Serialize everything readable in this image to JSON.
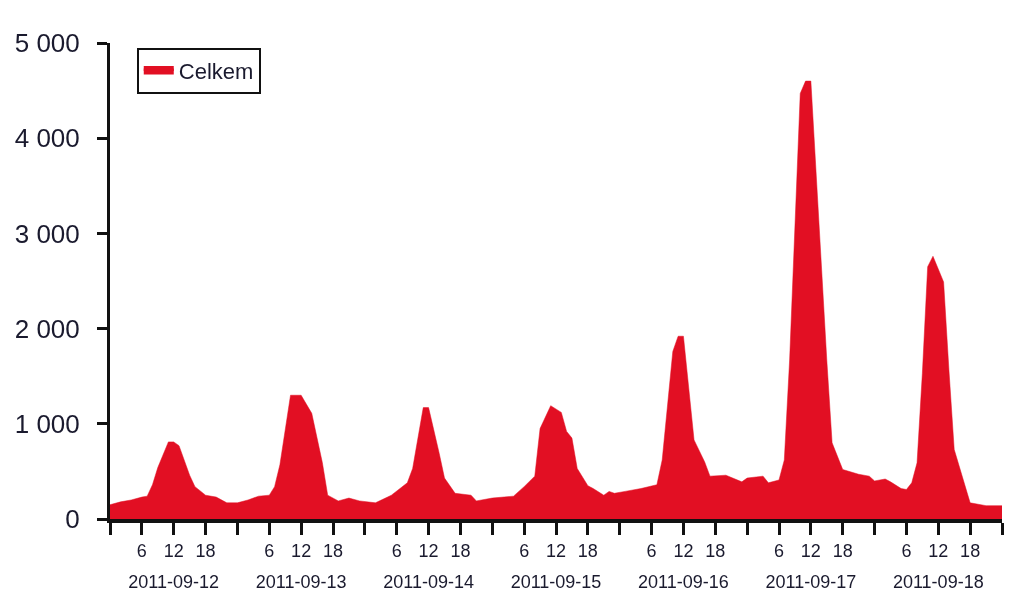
{
  "chart_data": {
    "type": "area",
    "x": [
      "2011-09-12T00:00",
      "2011-09-12T02:00",
      "2011-09-12T04:00",
      "2011-09-12T06:00",
      "2011-09-12T07:00",
      "2011-09-12T08:00",
      "2011-09-12T09:00",
      "2011-09-12T11:00",
      "2011-09-12T12:00",
      "2011-09-12T13:00",
      "2011-09-12T15:00",
      "2011-09-12T16:00",
      "2011-09-12T18:00",
      "2011-09-12T20:00",
      "2011-09-12T22:00",
      "2011-09-13T00:00",
      "2011-09-13T02:00",
      "2011-09-13T04:00",
      "2011-09-13T06:00",
      "2011-09-13T07:00",
      "2011-09-13T08:00",
      "2011-09-13T10:00",
      "2011-09-13T12:00",
      "2011-09-13T14:00",
      "2011-09-13T15:00",
      "2011-09-13T16:00",
      "2011-09-13T17:00",
      "2011-09-13T19:00",
      "2011-09-13T21:00",
      "2011-09-13T23:00",
      "2011-09-14T02:00",
      "2011-09-14T05:00",
      "2011-09-14T08:00",
      "2011-09-14T09:00",
      "2011-09-14T11:00",
      "2011-09-14T12:00",
      "2011-09-14T14:00",
      "2011-09-14T15:00",
      "2011-09-14T17:00",
      "2011-09-14T20:00",
      "2011-09-14T21:00",
      "2011-09-15T00:00",
      "2011-09-15T04:00",
      "2011-09-15T06:00",
      "2011-09-15T08:00",
      "2011-09-15T09:00",
      "2011-09-15T11:00",
      "2011-09-15T13:00",
      "2011-09-15T14:00",
      "2011-09-15T15:00",
      "2011-09-15T16:00",
      "2011-09-15T18:00",
      "2011-09-15T19:00",
      "2011-09-15T21:00",
      "2011-09-15T22:00",
      "2011-09-15T23:00",
      "2011-09-16T01:00",
      "2011-09-16T04:00",
      "2011-09-16T07:00",
      "2011-09-16T08:00",
      "2011-09-16T10:00",
      "2011-09-16T11:00",
      "2011-09-16T12:00",
      "2011-09-16T14:00",
      "2011-09-16T16:00",
      "2011-09-16T17:00",
      "2011-09-16T20:00",
      "2011-09-16T23:00",
      "2011-09-17T00:00",
      "2011-09-17T03:00",
      "2011-09-17T04:00",
      "2011-09-17T06:00",
      "2011-09-17T07:00",
      "2011-09-17T08:00",
      "2011-09-17T10:00",
      "2011-09-17T11:00",
      "2011-09-17T12:00",
      "2011-09-17T15:00",
      "2011-09-17T16:00",
      "2011-09-17T18:00",
      "2011-09-17T21:00",
      "2011-09-17T23:00",
      "2011-09-18T00:00",
      "2011-09-18T02:00",
      "2011-09-18T03:00",
      "2011-09-18T05:00",
      "2011-09-18T06:00",
      "2011-09-18T07:00",
      "2011-09-18T08:00",
      "2011-09-18T09:00",
      "2011-09-18T10:00",
      "2011-09-18T11:00",
      "2011-09-18T13:00",
      "2011-09-18T14:00",
      "2011-09-18T15:00",
      "2011-09-18T18:00",
      "2011-09-18T21:00",
      "2011-09-19T00:00"
    ],
    "series": [
      {
        "name": "Celkem",
        "color": "#e20f23",
        "values": [
          150,
          180,
          200,
          230,
          240,
          360,
          540,
          810,
          810,
          770,
          460,
          340,
          250,
          230,
          170,
          170,
          200,
          240,
          250,
          340,
          570,
          1300,
          1300,
          1110,
          850,
          590,
          250,
          190,
          220,
          190,
          170,
          250,
          380,
          530,
          1170,
          1170,
          690,
          430,
          270,
          250,
          190,
          220,
          240,
          340,
          450,
          950,
          1190,
          1120,
          920,
          850,
          530,
          350,
          320,
          250,
          290,
          270,
          290,
          320,
          360,
          620,
          1760,
          1920,
          1920,
          830,
          600,
          450,
          460,
          390,
          430,
          450,
          380,
          410,
          620,
          1670,
          4470,
          4600,
          4600,
          1670,
          800,
          520,
          470,
          450,
          400,
          420,
          390,
          320,
          310,
          380,
          590,
          1530,
          2650,
          2760,
          2490,
          1570,
          730,
          170,
          140,
          140
        ]
      }
    ],
    "xlim": [
      "2011-09-12T00:00",
      "2011-09-19T00:00"
    ],
    "xticks": [
      {
        "value": "2011-09-12T00:00",
        "label": null
      },
      {
        "value": "2011-09-12T06:00",
        "label": "6"
      },
      {
        "value": "2011-09-12T12:00",
        "label": "12"
      },
      {
        "value": "2011-09-12T18:00",
        "label": "18"
      },
      {
        "value": "2011-09-13T00:00",
        "label": null
      },
      {
        "value": "2011-09-13T06:00",
        "label": "6"
      },
      {
        "value": "2011-09-13T12:00",
        "label": "12"
      },
      {
        "value": "2011-09-13T18:00",
        "label": "18"
      },
      {
        "value": "2011-09-14T00:00",
        "label": null
      },
      {
        "value": "2011-09-14T06:00",
        "label": "6"
      },
      {
        "value": "2011-09-14T12:00",
        "label": "12"
      },
      {
        "value": "2011-09-14T18:00",
        "label": "18"
      },
      {
        "value": "2011-09-15T00:00",
        "label": null
      },
      {
        "value": "2011-09-15T06:00",
        "label": "6"
      },
      {
        "value": "2011-09-15T12:00",
        "label": "12"
      },
      {
        "value": "2011-09-15T18:00",
        "label": "18"
      },
      {
        "value": "2011-09-16T00:00",
        "label": null
      },
      {
        "value": "2011-09-16T06:00",
        "label": "6"
      },
      {
        "value": "2011-09-16T12:00",
        "label": "12"
      },
      {
        "value": "2011-09-16T18:00",
        "label": "18"
      },
      {
        "value": "2011-09-17T00:00",
        "label": null
      },
      {
        "value": "2011-09-17T06:00",
        "label": "6"
      },
      {
        "value": "2011-09-17T12:00",
        "label": "12"
      },
      {
        "value": "2011-09-17T18:00",
        "label": "18"
      },
      {
        "value": "2011-09-18T00:00",
        "label": null
      },
      {
        "value": "2011-09-18T06:00",
        "label": "6"
      },
      {
        "value": "2011-09-18T12:00",
        "label": "12"
      },
      {
        "value": "2011-09-18T18:00",
        "label": "18"
      },
      {
        "value": "2011-09-19T00:00",
        "label": null
      }
    ],
    "x2lim": [
      "2011-09-12T00:00",
      "2011-09-19T00:00"
    ],
    "x2ticks": [
      {
        "value": "2011-09-12T12:00",
        "label": "2011-09-12"
      },
      {
        "value": "2011-09-13T12:00",
        "label": "2011-09-13"
      },
      {
        "value": "2011-09-14T12:00",
        "label": "2011-09-14"
      },
      {
        "value": "2011-09-15T12:00",
        "label": "2011-09-15"
      },
      {
        "value": "2011-09-16T12:00",
        "label": "2011-09-16"
      },
      {
        "value": "2011-09-17T12:00",
        "label": "2011-09-17"
      },
      {
        "value": "2011-09-18T12:00",
        "label": "2011-09-18"
      }
    ],
    "ylim": [
      0,
      5000
    ],
    "yticks": [
      0,
      {
        "value": 1000,
        "label": "1 000"
      },
      {
        "value": 2000,
        "label": "2 000"
      },
      {
        "value": 3000,
        "label": "3 000"
      },
      {
        "value": 4000,
        "label": "4 000"
      },
      {
        "value": 5000,
        "label": "5 000"
      }
    ],
    "legend": "top left"
  }
}
